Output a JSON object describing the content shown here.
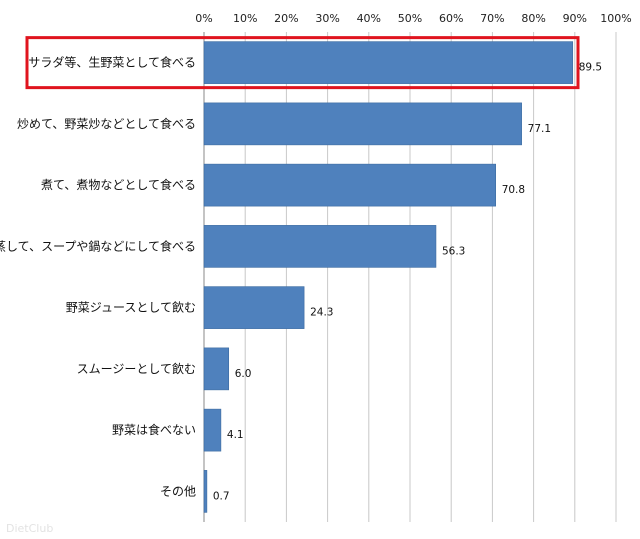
{
  "chart_data": {
    "type": "bar",
    "orientation": "horizontal",
    "categories": [
      "サラダ等、生野菜として食べる",
      "炒めて、野菜炒などとして食べる",
      "煮て、煮物などとして食べる",
      "蒸して、スープや鍋などにして食べる",
      "野菜ジュースとして飲む",
      "スムージーとして飲む",
      "野菜は食べない",
      "その他"
    ],
    "values": [
      89.5,
      77.1,
      70.8,
      56.3,
      24.3,
      6.0,
      4.1,
      0.7
    ],
    "value_labels": [
      "89.5",
      "77.1",
      "70.8",
      "56.3",
      "24.3",
      "6.0",
      "4.1",
      "0.7"
    ],
    "xlim": [
      0,
      100
    ],
    "x_ticks": [
      "0%",
      "10%",
      "20%",
      "30%",
      "40%",
      "50%",
      "60%",
      "70%",
      "80%",
      "90%",
      "100%"
    ],
    "x_axis_position": "top",
    "grid": true,
    "highlight_index": 0,
    "bar_color": "#4f81bd",
    "highlight_color": "#e0141e",
    "title": "",
    "xlabel": "",
    "ylabel": ""
  },
  "watermark": "DietClub"
}
